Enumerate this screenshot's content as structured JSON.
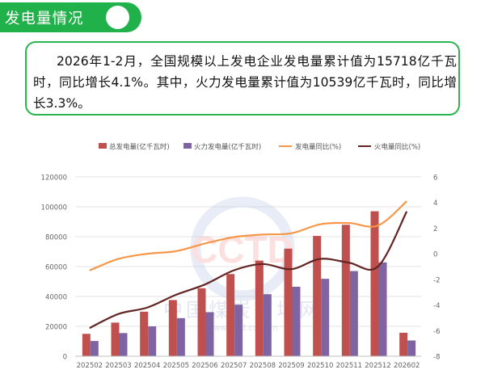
{
  "header": {
    "title": "发电量情况"
  },
  "summary": {
    "text": "2026年1-2月，全国规模以上发电企业发电量累计值为15718亿千瓦时，同比增长4.1%。其中，火力发电量累计值为10539亿千瓦时，同比增长3.3%。"
  },
  "watermark": {
    "logo": "CCTD",
    "name": "中国煤炭市场网",
    "url": "www.cctd.com.cn"
  },
  "colors": {
    "accent": "#20b14a",
    "total_bar": "#c0504d",
    "thermal_bar": "#8064a2",
    "total_yoy_line": "#f79646",
    "thermal_yoy_line": "#632523"
  },
  "chart_data": {
    "type": "bar",
    "categories": [
      "202502",
      "202503",
      "202504",
      "202505",
      "202506",
      "202507",
      "202508",
      "202509",
      "202510",
      "202511",
      "202512",
      "202602"
    ],
    "series": [
      {
        "name": "总发电量(亿千瓦时)",
        "type": "bar",
        "axis": "left",
        "values": [
          15000,
          22500,
          29800,
          37600,
          45500,
          55000,
          64000,
          72000,
          80500,
          88000,
          97000,
          15718
        ]
      },
      {
        "name": "火力发电量(亿千瓦时)",
        "type": "bar",
        "axis": "left",
        "values": [
          10200,
          15500,
          20000,
          25500,
          29500,
          34500,
          41500,
          46500,
          51800,
          57000,
          62800,
          10539
        ]
      },
      {
        "name": "发电量同比(%)",
        "type": "line",
        "axis": "right",
        "values": [
          -1.3,
          -0.4,
          0.0,
          0.2,
          0.8,
          1.3,
          1.5,
          1.6,
          2.3,
          2.4,
          2.2,
          4.1
        ]
      },
      {
        "name": "火电量同比(%)",
        "type": "line",
        "axis": "right",
        "values": [
          -5.8,
          -4.7,
          -4.2,
          -3.2,
          -2.4,
          -1.3,
          -0.8,
          -1.2,
          -0.4,
          -0.7,
          -1.0,
          3.3
        ]
      }
    ],
    "ylim_left": [
      0,
      120000
    ],
    "ylim_right": [
      -8,
      6
    ],
    "left_ticks": [
      "0",
      "20000",
      "40000",
      "60000",
      "80000",
      "100000",
      "120000"
    ],
    "right_ticks": [
      "-8",
      "-6",
      "-4",
      "-2",
      "0",
      "2",
      "4",
      "6"
    ],
    "grid": true,
    "legend_position": "top"
  }
}
